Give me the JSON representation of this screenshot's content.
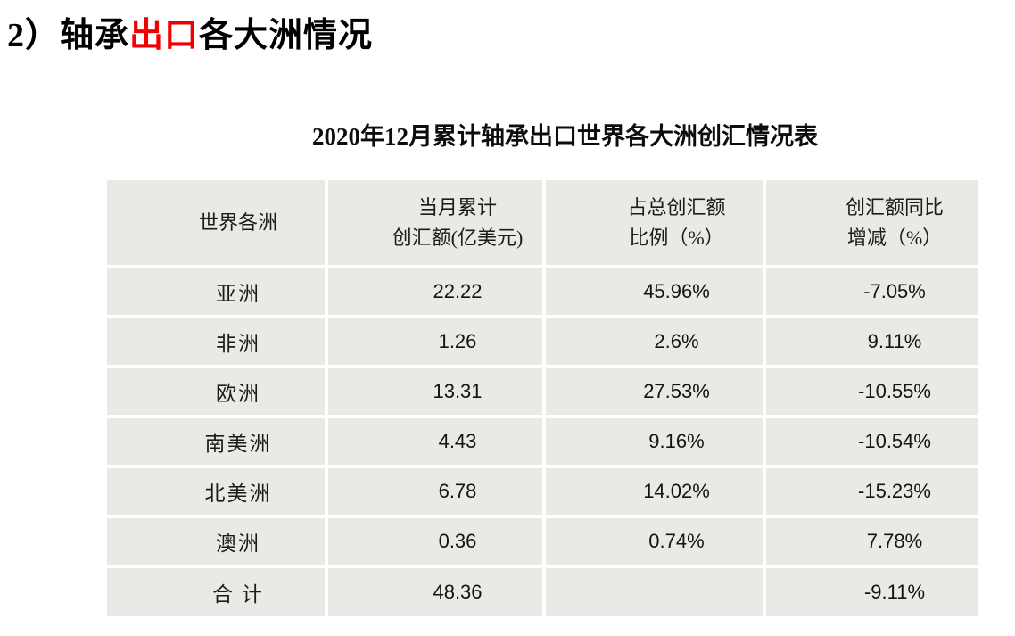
{
  "heading": {
    "prefix": "2）轴承",
    "highlight": "出口",
    "suffix": "各大洲情况"
  },
  "colors": {
    "highlight_red": "#f00000",
    "cell_background": "#e8eae5",
    "page_background": "#ffffff",
    "text": "#1c1c1c"
  },
  "table": {
    "title": "2020年12月累计轴承出口世界各大洲创汇情况表",
    "columns": [
      {
        "line1": "世界各洲",
        "line2": ""
      },
      {
        "line1": "当月累计",
        "line2": "创汇额(亿美元)"
      },
      {
        "line1": "占总创汇额",
        "line2": "比例（%）"
      },
      {
        "line1": "创汇额同比",
        "line2": "增减（%）"
      }
    ],
    "rows": [
      {
        "region": "亚洲",
        "amount": "22.22",
        "share": "45.96%",
        "yoy": "-7.05%"
      },
      {
        "region": "非洲",
        "amount": "1.26",
        "share": "2.6%",
        "yoy": "9.11%"
      },
      {
        "region": "欧洲",
        "amount": "13.31",
        "share": "27.53%",
        "yoy": "-10.55%"
      },
      {
        "region": "南美洲",
        "amount": "4.43",
        "share": "9.16%",
        "yoy": "-10.54%"
      },
      {
        "region": "北美洲",
        "amount": "6.78",
        "share": "14.02%",
        "yoy": "-15.23%"
      },
      {
        "region": "澳洲",
        "amount": "0.36",
        "share": "0.74%",
        "yoy": "7.78%"
      },
      {
        "region": "合 计",
        "amount": "48.36",
        "share": "",
        "yoy": "-9.11%"
      }
    ]
  }
}
